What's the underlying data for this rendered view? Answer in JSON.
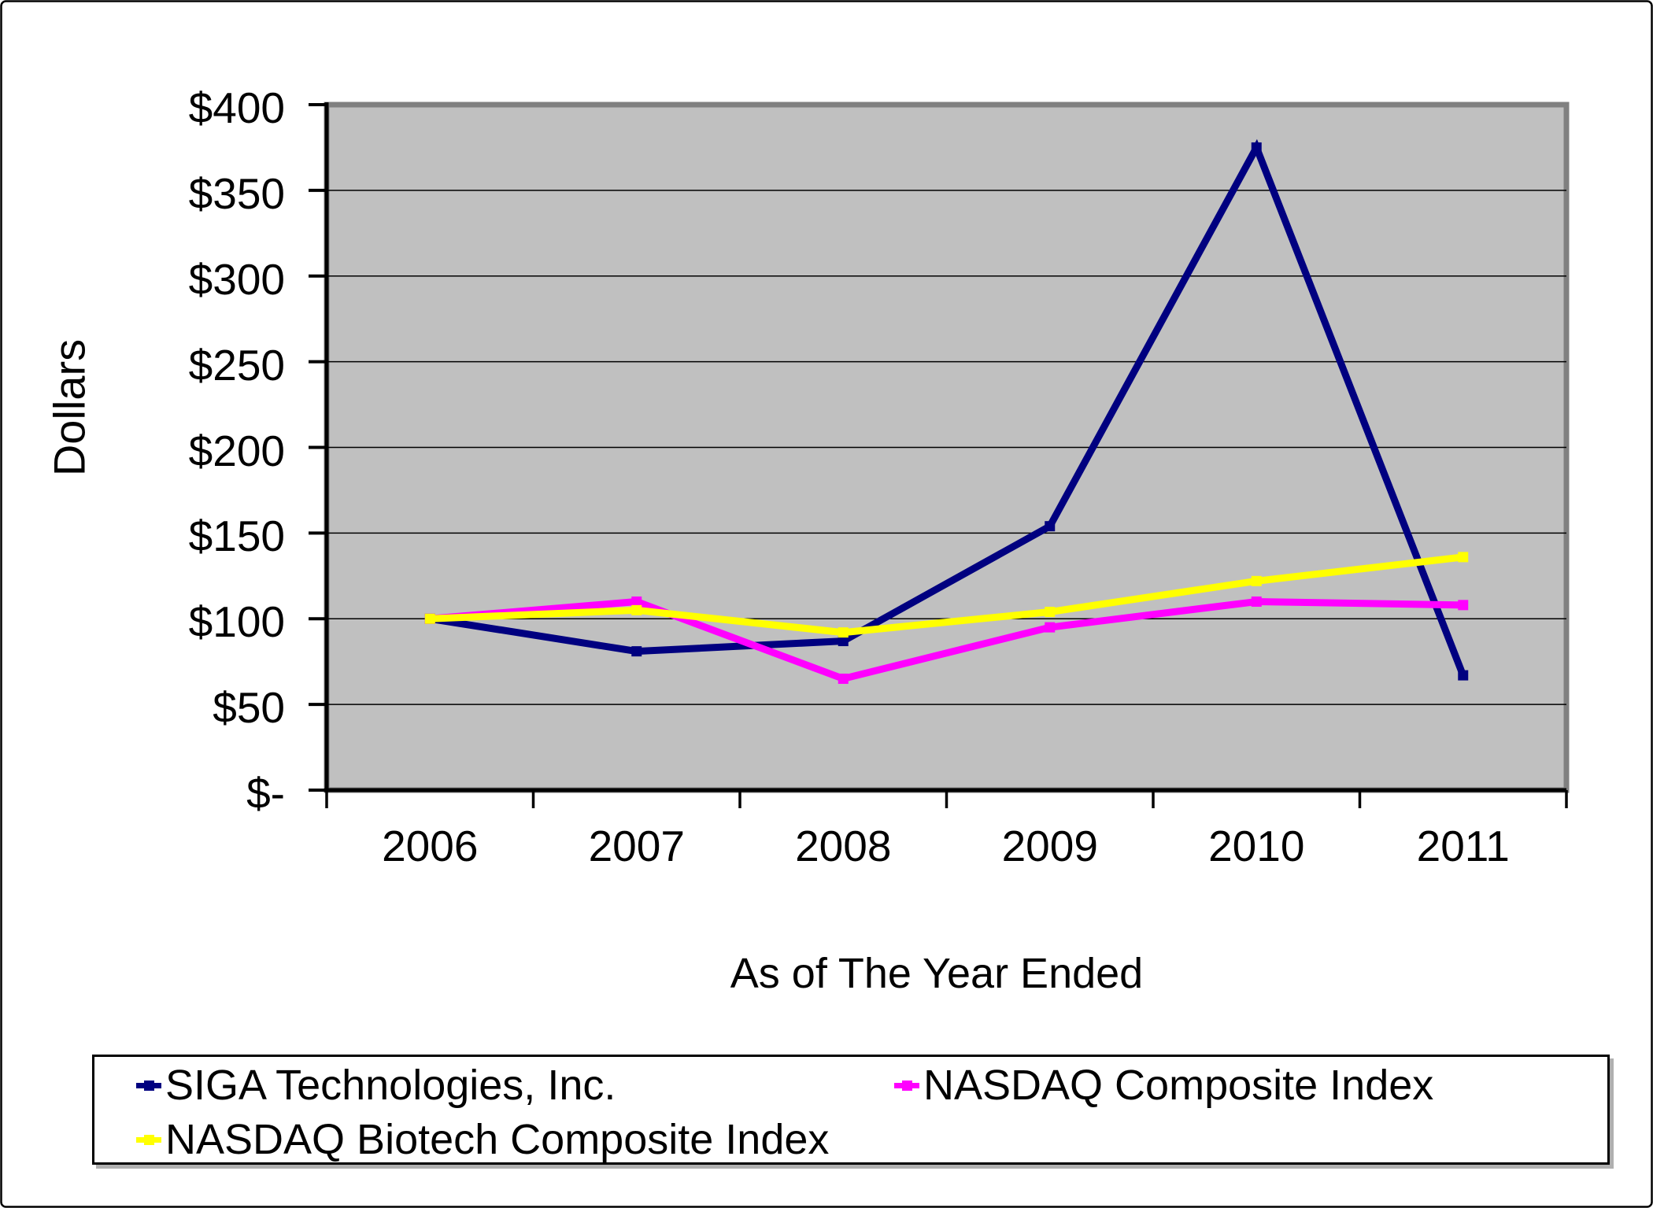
{
  "chart_data": {
    "type": "line",
    "title": "",
    "xlabel": "As of The Year Ended",
    "ylabel": "Dollars",
    "categories": [
      "2006",
      "2007",
      "2008",
      "2009",
      "2010",
      "2011"
    ],
    "series": [
      {
        "name": "SIGA Technologies, Inc.",
        "color": "#000080",
        "values": [
          100,
          81,
          87,
          154,
          375,
          67
        ]
      },
      {
        "name": "NASDAQ Composite Index",
        "color": "#FF00FF",
        "values": [
          100,
          110,
          65,
          95,
          110,
          108
        ]
      },
      {
        "name": "NASDAQ Biotech Composite Index",
        "color": "#FFFF00",
        "values": [
          100,
          105,
          92,
          104,
          122,
          136
        ]
      }
    ],
    "ylim": [
      0,
      400
    ],
    "ytick_step": 50,
    "ytick_labels": [
      "$-",
      "$50",
      "$100",
      "$150",
      "$200",
      "$250",
      "$300",
      "$350",
      "$400"
    ],
    "grid": "horizontal",
    "plot_bg": "#C0C0C0",
    "grid_color": "#000000",
    "plot_border_color": "#808080",
    "legend_position": "bottom"
  }
}
